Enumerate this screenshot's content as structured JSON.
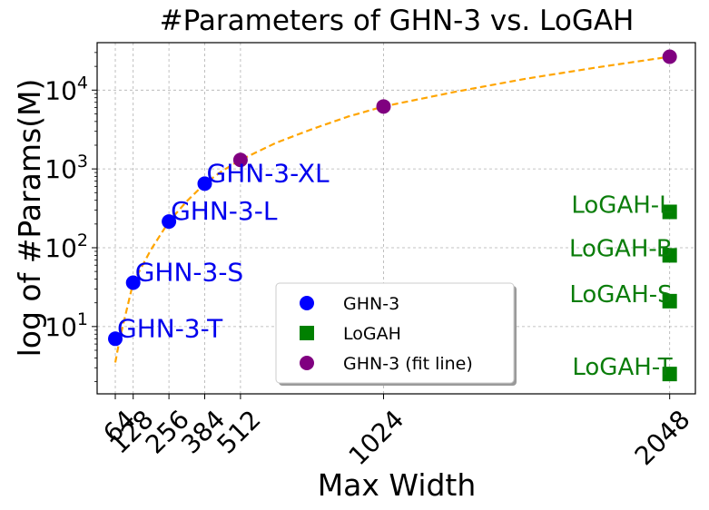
{
  "chart_data": {
    "type": "scatter",
    "title": "#Parameters of GHN-3 vs. LoGAH",
    "xlabel": "Max Width",
    "ylabel": "log of #Params(M)",
    "y_scale": "log",
    "ylim": [
      1.4,
      40000
    ],
    "xlim": [
      -1,
      2140
    ],
    "grid": true,
    "legend_position": "lower-center",
    "x_ticks": [
      64,
      128,
      256,
      384,
      512,
      1024,
      2048
    ],
    "y_ticks": [
      {
        "value": 10,
        "label_base": "10",
        "label_exp": "1"
      },
      {
        "value": 100,
        "label_base": "10",
        "label_exp": "2"
      },
      {
        "value": 1000,
        "label_base": "10",
        "label_exp": "3"
      },
      {
        "value": 10000,
        "label_base": "10",
        "label_exp": "4"
      }
    ],
    "series": [
      {
        "name": "GHN-3",
        "marker": "circle",
        "color": "#0000ff",
        "label_color": "#0000ee",
        "points": [
          {
            "x": 64,
            "y": 7,
            "label": "GHN-3-T"
          },
          {
            "x": 128,
            "y": 36,
            "label": "GHN-3-S"
          },
          {
            "x": 256,
            "y": 215,
            "label": "GHN-3-L"
          },
          {
            "x": 384,
            "y": 650,
            "label": "GHN-3-XL"
          }
        ]
      },
      {
        "name": "LoGAH",
        "marker": "square",
        "color": "#008000",
        "label_color": "#0a7d0a",
        "points": [
          {
            "x": 2048,
            "y": 2.5,
            "label": "LoGAH-T"
          },
          {
            "x": 2048,
            "y": 21,
            "label": "LoGAH-S"
          },
          {
            "x": 2048,
            "y": 80,
            "label": "LoGAH-B"
          },
          {
            "x": 2048,
            "y": 285,
            "label": "LoGAH-L"
          }
        ]
      },
      {
        "name": "GHN-3 (fit line)",
        "marker": "circle",
        "color": "#800080",
        "points": [
          {
            "x": 512,
            "y": 1300
          },
          {
            "x": 1024,
            "y": 6200
          },
          {
            "x": 2048,
            "y": 26500
          }
        ]
      }
    ],
    "fit_line": {
      "color": "#ffa500",
      "style": "dashed",
      "points": [
        {
          "x": 64,
          "y": 3.5
        },
        {
          "x": 80,
          "y": 7
        },
        {
          "x": 128,
          "y": 36
        },
        {
          "x": 192,
          "y": 95
        },
        {
          "x": 256,
          "y": 215
        },
        {
          "x": 320,
          "y": 390
        },
        {
          "x": 384,
          "y": 650
        },
        {
          "x": 448,
          "y": 950
        },
        {
          "x": 512,
          "y": 1300
        },
        {
          "x": 640,
          "y": 2150
        },
        {
          "x": 768,
          "y": 3200
        },
        {
          "x": 896,
          "y": 4600
        },
        {
          "x": 1024,
          "y": 6200
        },
        {
          "x": 1280,
          "y": 9500
        },
        {
          "x": 1536,
          "y": 14000
        },
        {
          "x": 1792,
          "y": 19500
        },
        {
          "x": 2048,
          "y": 26500
        }
      ]
    }
  }
}
